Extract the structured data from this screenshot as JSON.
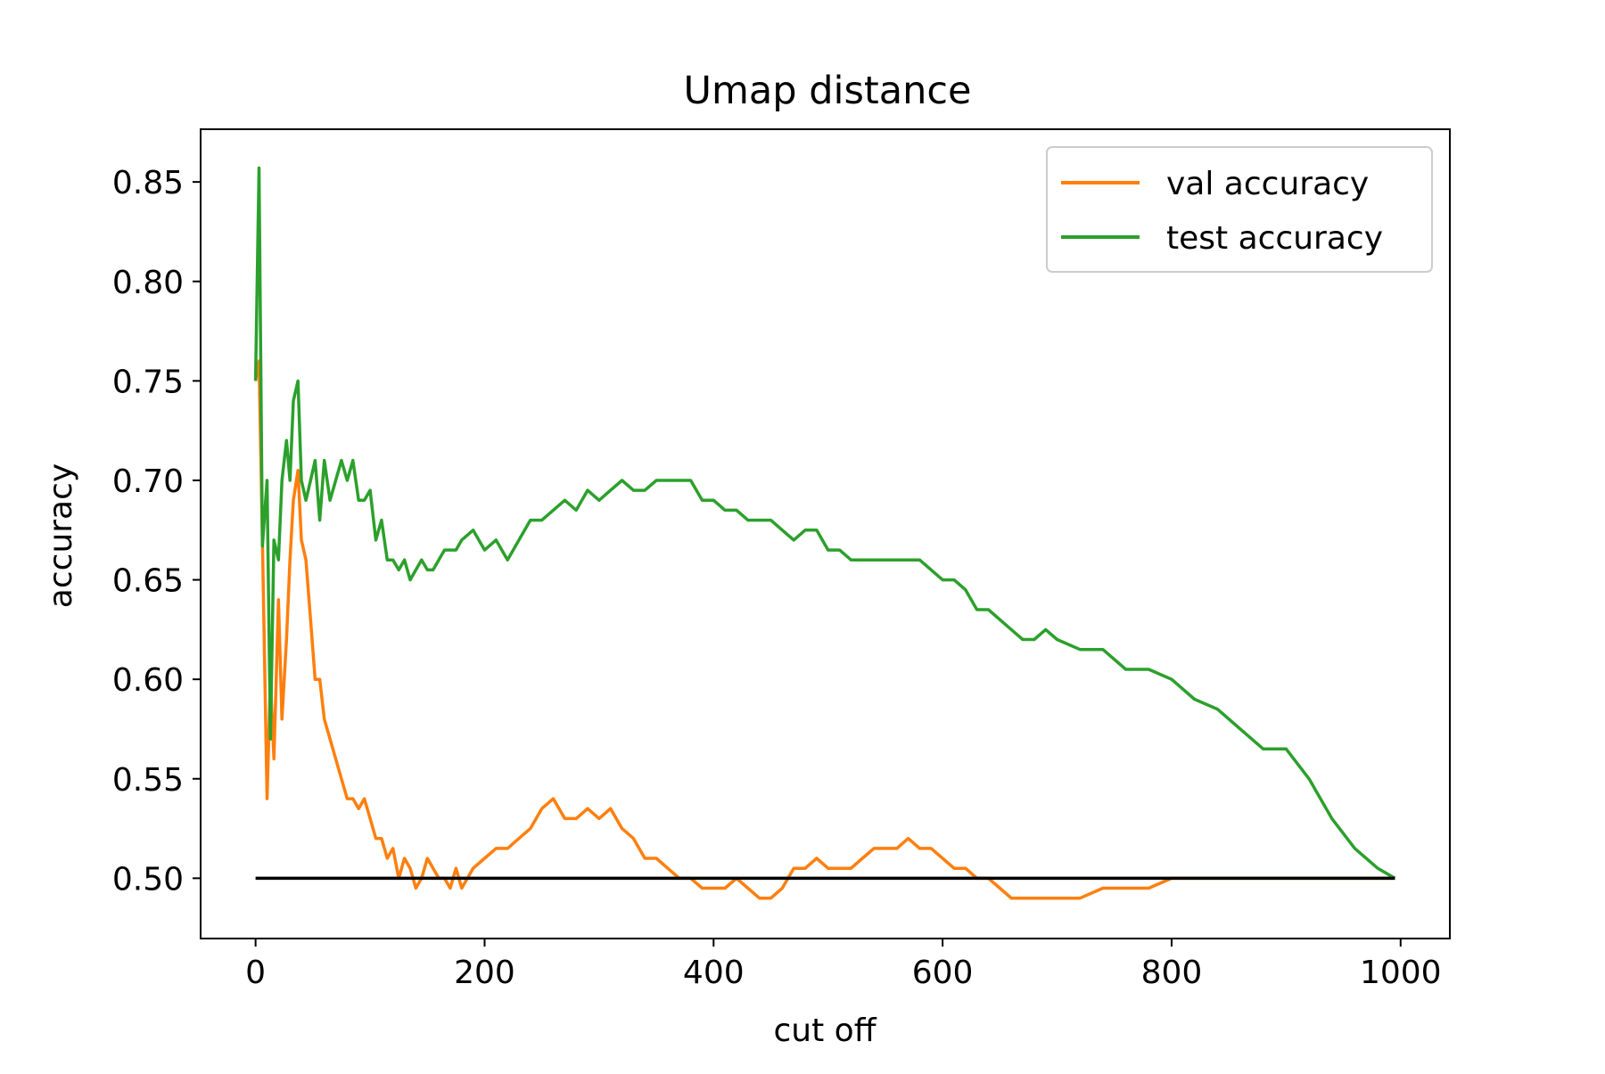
{
  "chart_data": {
    "type": "line",
    "title": "Umap distance",
    "xlabel": "cut off",
    "ylabel": "accuracy",
    "xlim": [
      -48,
      1043
    ],
    "ylim": [
      0.4697,
      0.8765
    ],
    "xticks": [
      {
        "value": 0,
        "label": "0"
      },
      {
        "value": 200,
        "label": "200"
      },
      {
        "value": 400,
        "label": "400"
      },
      {
        "value": 600,
        "label": "600"
      },
      {
        "value": 800,
        "label": "800"
      },
      {
        "value": 1000,
        "label": "1000"
      }
    ],
    "yticks": [
      {
        "value": 0.5,
        "label": "0.50"
      },
      {
        "value": 0.55,
        "label": "0.55"
      },
      {
        "value": 0.6,
        "label": "0.60"
      },
      {
        "value": 0.65,
        "label": "0.65"
      },
      {
        "value": 0.7,
        "label": "0.70"
      },
      {
        "value": 0.75,
        "label": "0.75"
      },
      {
        "value": 0.8,
        "label": "0.80"
      },
      {
        "value": 0.85,
        "label": "0.85"
      }
    ],
    "grid": false,
    "legend_position": "top-right",
    "series": [
      {
        "name": "val accuracy",
        "color": "#ff7f0e",
        "x": [
          0,
          3,
          6,
          10,
          13,
          16,
          20,
          23,
          27,
          30,
          33,
          37,
          40,
          44,
          48,
          52,
          56,
          60,
          65,
          70,
          75,
          80,
          85,
          90,
          95,
          100,
          105,
          110,
          115,
          120,
          125,
          130,
          135,
          140,
          145,
          150,
          155,
          160,
          165,
          170,
          175,
          180,
          190,
          200,
          210,
          220,
          230,
          240,
          250,
          260,
          270,
          280,
          290,
          300,
          310,
          320,
          330,
          340,
          350,
          360,
          370,
          380,
          390,
          400,
          410,
          420,
          430,
          440,
          450,
          460,
          470,
          480,
          490,
          500,
          510,
          520,
          530,
          540,
          550,
          560,
          570,
          580,
          590,
          600,
          610,
          620,
          630,
          640,
          650,
          660,
          670,
          680,
          690,
          700,
          720,
          740,
          760,
          780,
          800,
          820,
          840,
          860,
          880,
          900,
          920,
          940,
          960,
          980,
          995
        ],
        "y": [
          0.75,
          0.76,
          0.67,
          0.54,
          0.6,
          0.56,
          0.64,
          0.58,
          0.62,
          0.66,
          0.69,
          0.705,
          0.67,
          0.66,
          0.63,
          0.6,
          0.6,
          0.58,
          0.57,
          0.56,
          0.55,
          0.54,
          0.54,
          0.535,
          0.54,
          0.53,
          0.52,
          0.52,
          0.51,
          0.515,
          0.5,
          0.51,
          0.505,
          0.495,
          0.5,
          0.51,
          0.505,
          0.5,
          0.5,
          0.495,
          0.505,
          0.495,
          0.505,
          0.51,
          0.515,
          0.515,
          0.52,
          0.525,
          0.535,
          0.54,
          0.53,
          0.53,
          0.535,
          0.53,
          0.535,
          0.525,
          0.52,
          0.51,
          0.51,
          0.505,
          0.5,
          0.5,
          0.495,
          0.495,
          0.495,
          0.5,
          0.495,
          0.49,
          0.49,
          0.495,
          0.505,
          0.505,
          0.51,
          0.505,
          0.505,
          0.505,
          0.51,
          0.515,
          0.515,
          0.515,
          0.52,
          0.515,
          0.515,
          0.51,
          0.505,
          0.505,
          0.5,
          0.5,
          0.495,
          0.49,
          0.49,
          0.49,
          0.49,
          0.49,
          0.49,
          0.495,
          0.495,
          0.495,
          0.5,
          0.5,
          0.5,
          0.5,
          0.5,
          0.5,
          0.5,
          0.5,
          0.5,
          0.5,
          0.5
        ]
      },
      {
        "name": "test accuracy",
        "color": "#2ca02c",
        "x": [
          0,
          3,
          6,
          10,
          13,
          16,
          20,
          23,
          27,
          30,
          33,
          37,
          40,
          44,
          48,
          52,
          56,
          60,
          65,
          70,
          75,
          80,
          85,
          90,
          95,
          100,
          105,
          110,
          115,
          120,
          125,
          130,
          135,
          140,
          145,
          150,
          155,
          160,
          165,
          170,
          175,
          180,
          190,
          200,
          210,
          220,
          230,
          240,
          250,
          260,
          270,
          280,
          290,
          300,
          310,
          320,
          330,
          340,
          350,
          360,
          370,
          380,
          390,
          400,
          410,
          420,
          430,
          440,
          450,
          460,
          470,
          480,
          490,
          500,
          510,
          520,
          530,
          540,
          550,
          560,
          570,
          580,
          590,
          600,
          610,
          620,
          630,
          640,
          650,
          660,
          670,
          680,
          690,
          700,
          720,
          740,
          760,
          780,
          800,
          820,
          840,
          860,
          880,
          900,
          920,
          940,
          960,
          980,
          995
        ],
        "y": [
          0.75,
          0.857,
          0.667,
          0.7,
          0.57,
          0.67,
          0.66,
          0.7,
          0.72,
          0.7,
          0.74,
          0.75,
          0.7,
          0.69,
          0.7,
          0.71,
          0.68,
          0.71,
          0.69,
          0.7,
          0.71,
          0.7,
          0.71,
          0.69,
          0.69,
          0.695,
          0.67,
          0.68,
          0.66,
          0.66,
          0.655,
          0.66,
          0.65,
          0.655,
          0.66,
          0.655,
          0.655,
          0.66,
          0.665,
          0.665,
          0.665,
          0.67,
          0.675,
          0.665,
          0.67,
          0.66,
          0.67,
          0.68,
          0.68,
          0.685,
          0.69,
          0.685,
          0.695,
          0.69,
          0.695,
          0.7,
          0.695,
          0.695,
          0.7,
          0.7,
          0.7,
          0.7,
          0.69,
          0.69,
          0.685,
          0.685,
          0.68,
          0.68,
          0.68,
          0.675,
          0.67,
          0.675,
          0.675,
          0.665,
          0.665,
          0.66,
          0.66,
          0.66,
          0.66,
          0.66,
          0.66,
          0.66,
          0.655,
          0.65,
          0.65,
          0.645,
          0.635,
          0.635,
          0.63,
          0.625,
          0.62,
          0.62,
          0.625,
          0.62,
          0.615,
          0.615,
          0.605,
          0.605,
          0.6,
          0.59,
          0.585,
          0.575,
          0.565,
          0.565,
          0.55,
          0.53,
          0.515,
          0.505,
          0.5
        ]
      },
      {
        "name": "",
        "color": "#000000",
        "x": [
          0,
          995
        ],
        "y": [
          0.5,
          0.5
        ]
      }
    ]
  }
}
